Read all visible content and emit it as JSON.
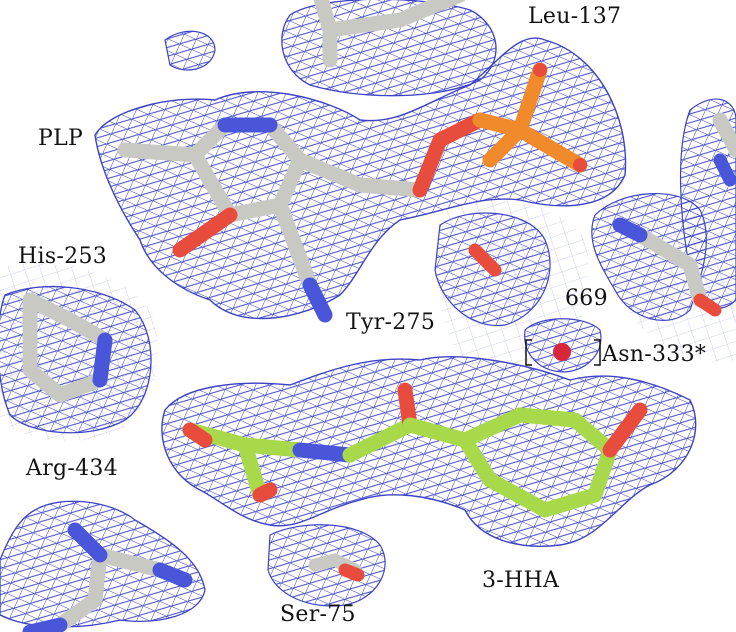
{
  "figure": {
    "background": "#ffffff",
    "colors": {
      "density_mesh": "#3d43c4",
      "carbon_protein": "#c9c9c4",
      "carbon_ligand": "#a8d94a",
      "nitrogen": "#4a56d9",
      "oxygen": "#e84c3c",
      "phosphorus": "#f08a2a",
      "water": "#d8263a"
    },
    "labels": {
      "leu137": "Leu-137",
      "plp": "PLP",
      "his253": "His-253",
      "tyr275": "Tyr-275",
      "water669": "669",
      "asn333": "Asn-333*",
      "arg434": "Arg-434",
      "hha": "3-HHA",
      "ser75": "Ser-75"
    }
  }
}
